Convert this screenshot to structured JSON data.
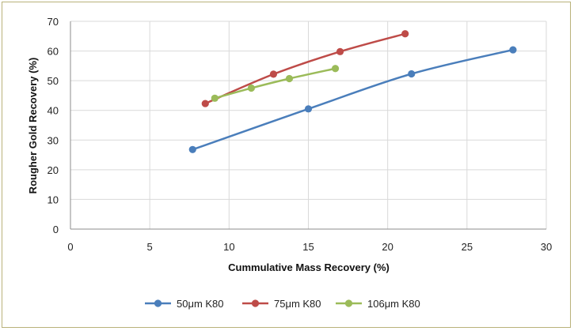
{
  "chart_data": {
    "type": "line",
    "title": "",
    "xlabel": "Cummulative Mass Recovery (%)",
    "ylabel": "Rougher Gold Recovery (%)",
    "xlim": [
      0,
      30
    ],
    "ylim": [
      0,
      70
    ],
    "xticks": [
      0,
      5,
      10,
      15,
      20,
      25,
      30
    ],
    "yticks": [
      0,
      10,
      20,
      30,
      40,
      50,
      60,
      70
    ],
    "grid": true,
    "legend_position": "bottom",
    "series": [
      {
        "name": "50μm K80",
        "color": "#4a7ebb",
        "x": [
          7.7,
          15.0,
          21.5,
          27.9
        ],
        "y": [
          26.8,
          40.5,
          52.3,
          60.4
        ]
      },
      {
        "name": "75μm K80",
        "color": "#be4b48",
        "x": [
          8.5,
          12.8,
          17.0,
          21.1
        ],
        "y": [
          42.3,
          52.2,
          59.8,
          65.8
        ]
      },
      {
        "name": "106μm K80",
        "color": "#9bbb59",
        "x": [
          9.1,
          11.4,
          13.8,
          16.7
        ],
        "y": [
          44.1,
          47.5,
          50.7,
          54.1
        ]
      }
    ]
  }
}
